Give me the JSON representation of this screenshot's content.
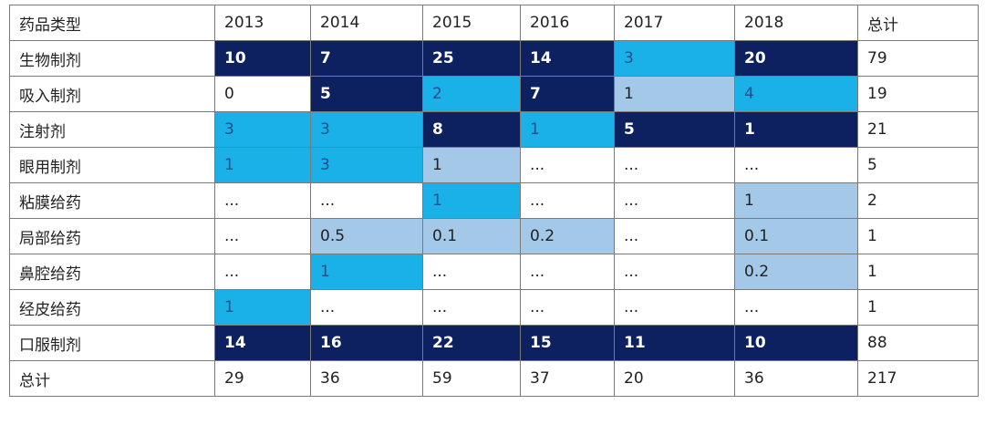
{
  "table": {
    "header": [
      "药品类型",
      "2013",
      "2014",
      "2015",
      "2016",
      "2017",
      "2018",
      "总计"
    ],
    "rows": [
      [
        "生物制剂",
        "10",
        "7",
        "25",
        "14",
        "3",
        "20",
        "79"
      ],
      [
        "吸入制剂",
        "0",
        "5",
        "2",
        "7",
        "1",
        "4",
        "19"
      ],
      [
        "注射剂",
        "3",
        "3",
        "8",
        "1",
        "5",
        "1",
        "21"
      ],
      [
        "眼用制剂",
        "1",
        "3",
        "1",
        "...",
        "...",
        "...",
        "5"
      ],
      [
        "粘膜给药",
        "...",
        "...",
        "1",
        "...",
        "...",
        "1",
        "2"
      ],
      [
        "局部给药",
        "...",
        "0.5",
        "0.1",
        "0.2",
        "...",
        "0.1",
        "1"
      ],
      [
        "鼻腔给药",
        "...",
        "1",
        "...",
        "...",
        "...",
        "0.2",
        "1"
      ],
      [
        "经皮给药",
        "1",
        "...",
        "...",
        "...",
        "...",
        "...",
        "1"
      ],
      [
        "口服制剂",
        "14",
        "16",
        "22",
        "15",
        "11",
        "10",
        "88"
      ],
      [
        "总计",
        "29",
        "36",
        "59",
        "37",
        "20",
        "36",
        "217"
      ]
    ],
    "fills": [
      [
        null,
        "#0d2160",
        "#0d2160",
        "#0d2160",
        "#0d2160",
        "#1ab0e8",
        "#0d2160",
        null
      ],
      [
        null,
        null,
        "#0d2160",
        "#1ab0e8",
        "#0d2160",
        "#a3c8e8",
        "#1ab0e8",
        null
      ],
      [
        null,
        "#1ab0e8",
        "#1ab0e8",
        "#0d2160",
        "#1ab0e8",
        "#0d2160",
        "#0d2160",
        null
      ],
      [
        null,
        "#1ab0e8",
        "#1ab0e8",
        "#a3c8e8",
        null,
        null,
        null,
        null
      ],
      [
        null,
        null,
        null,
        "#1ab0e8",
        null,
        null,
        "#a3c8e8",
        null
      ],
      [
        null,
        null,
        "#a3c8e8",
        "#a3c8e8",
        "#a3c8e8",
        null,
        "#a3c8e8",
        null
      ],
      [
        null,
        null,
        "#1ab0e8",
        null,
        null,
        null,
        "#a3c8e8",
        null
      ],
      [
        null,
        "#1ab0e8",
        null,
        null,
        null,
        null,
        null,
        null
      ],
      [
        null,
        "#0d2160",
        "#0d2160",
        "#0d2160",
        "#0d2160",
        "#0d2160",
        "#0d2160",
        null
      ],
      [
        null,
        null,
        null,
        null,
        null,
        null,
        null,
        null
      ]
    ]
  }
}
